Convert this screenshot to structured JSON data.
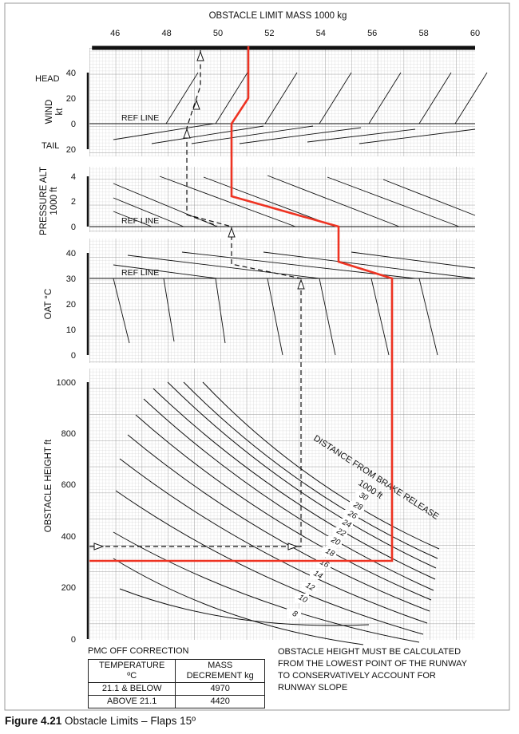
{
  "chart_data": {
    "type": "nomogram",
    "title": "OBSTACLE LIMIT MASS  1000 kg",
    "x_axis": {
      "ticks": [
        "46",
        "48",
        "50",
        "52",
        "54",
        "56",
        "58",
        "60"
      ],
      "range": [
        45,
        60
      ]
    },
    "panels": [
      {
        "id": "wind",
        "ylabel": [
          "WIND",
          "kt"
        ],
        "top_label": "HEAD",
        "bottom_label": "TAIL",
        "ticks": [
          "40",
          "20",
          "0",
          "20"
        ],
        "ref_line_label": "REF LINE",
        "guides_count": 8
      },
      {
        "id": "pressure_alt",
        "ylabel": [
          "PRESSURE ALT",
          "1000 ft"
        ],
        "ticks": [
          "4",
          "2",
          "0"
        ],
        "ref_line_label": "REF LINE"
      },
      {
        "id": "oat",
        "ylabel": [
          "OAT °C"
        ],
        "ticks": [
          "40",
          "30",
          "20",
          "10",
          "0"
        ],
        "ref_line_label": "REF LINE"
      },
      {
        "id": "obstacle_height",
        "ylabel": [
          "OBSTACLE HEIGHT  ft"
        ],
        "ticks": [
          "1000",
          "800",
          "600",
          "400",
          "200",
          "0"
        ],
        "range": [
          0,
          1000
        ],
        "curve_title": [
          "DISTANCE FROM BRAKE RELEASE",
          "1000 ft"
        ],
        "curves": [
          {
            "label": "30"
          },
          {
            "label": "28"
          },
          {
            "label": "26"
          },
          {
            "label": "24"
          },
          {
            "label": "22"
          },
          {
            "label": "20"
          },
          {
            "label": "18"
          },
          {
            "label": "16"
          },
          {
            "label": "14"
          },
          {
            "label": "12"
          },
          {
            "label": "10"
          },
          {
            "label": "8"
          }
        ]
      }
    ],
    "example_paths": [
      {
        "name": "red",
        "color": "#ee3322"
      },
      {
        "name": "dashed",
        "color": "#111111"
      }
    ]
  },
  "pmc": {
    "title": "PMC OFF CORRECTION",
    "headers": [
      [
        "TEMPERATURE",
        "ºC"
      ],
      [
        "MASS",
        "DECREMENT  kg"
      ]
    ],
    "rows": [
      [
        "21.1 & BELOW",
        "4970"
      ],
      [
        "ABOVE 21.1",
        "4420"
      ]
    ]
  },
  "note": {
    "lines": [
      "OBSTACLE HEIGHT MUST BE CALCULATED",
      "FROM THE LOWEST POINT OF THE RUNWAY",
      "TO CONSERVATIVELY ACCOUNT FOR",
      "RUNWAY SLOPE"
    ]
  },
  "caption": {
    "label": "Figure 4.21",
    "text": " Obstacle Limits – Flaps 15º"
  }
}
